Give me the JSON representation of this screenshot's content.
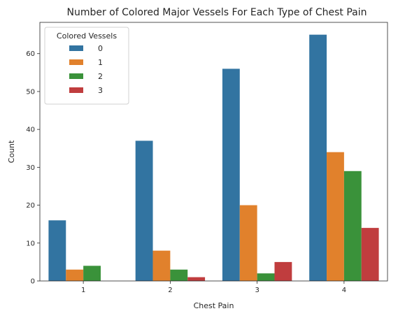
{
  "chart_data": {
    "type": "bar",
    "title": "Number of Colored Major Vessels For Each Type of Chest Pain",
    "xlabel": "Chest Pain",
    "ylabel": "Count",
    "categories": [
      "1",
      "2",
      "3",
      "4"
    ],
    "ylim": [
      0,
      68.25
    ],
    "yticks": [
      0,
      10,
      20,
      30,
      40,
      50,
      60
    ],
    "grid": false,
    "legend": {
      "title": "Colored Vessels",
      "placement": "top-left"
    },
    "series": [
      {
        "name": "0",
        "color": "#3274a1",
        "values": [
          16,
          37,
          56,
          65
        ]
      },
      {
        "name": "1",
        "color": "#e1812c",
        "values": [
          3,
          8,
          20,
          34
        ]
      },
      {
        "name": "2",
        "color": "#3a923a",
        "values": [
          4,
          3,
          2,
          29
        ]
      },
      {
        "name": "3",
        "color": "#c03d3e",
        "values": [
          0,
          1,
          5,
          14
        ]
      }
    ]
  }
}
